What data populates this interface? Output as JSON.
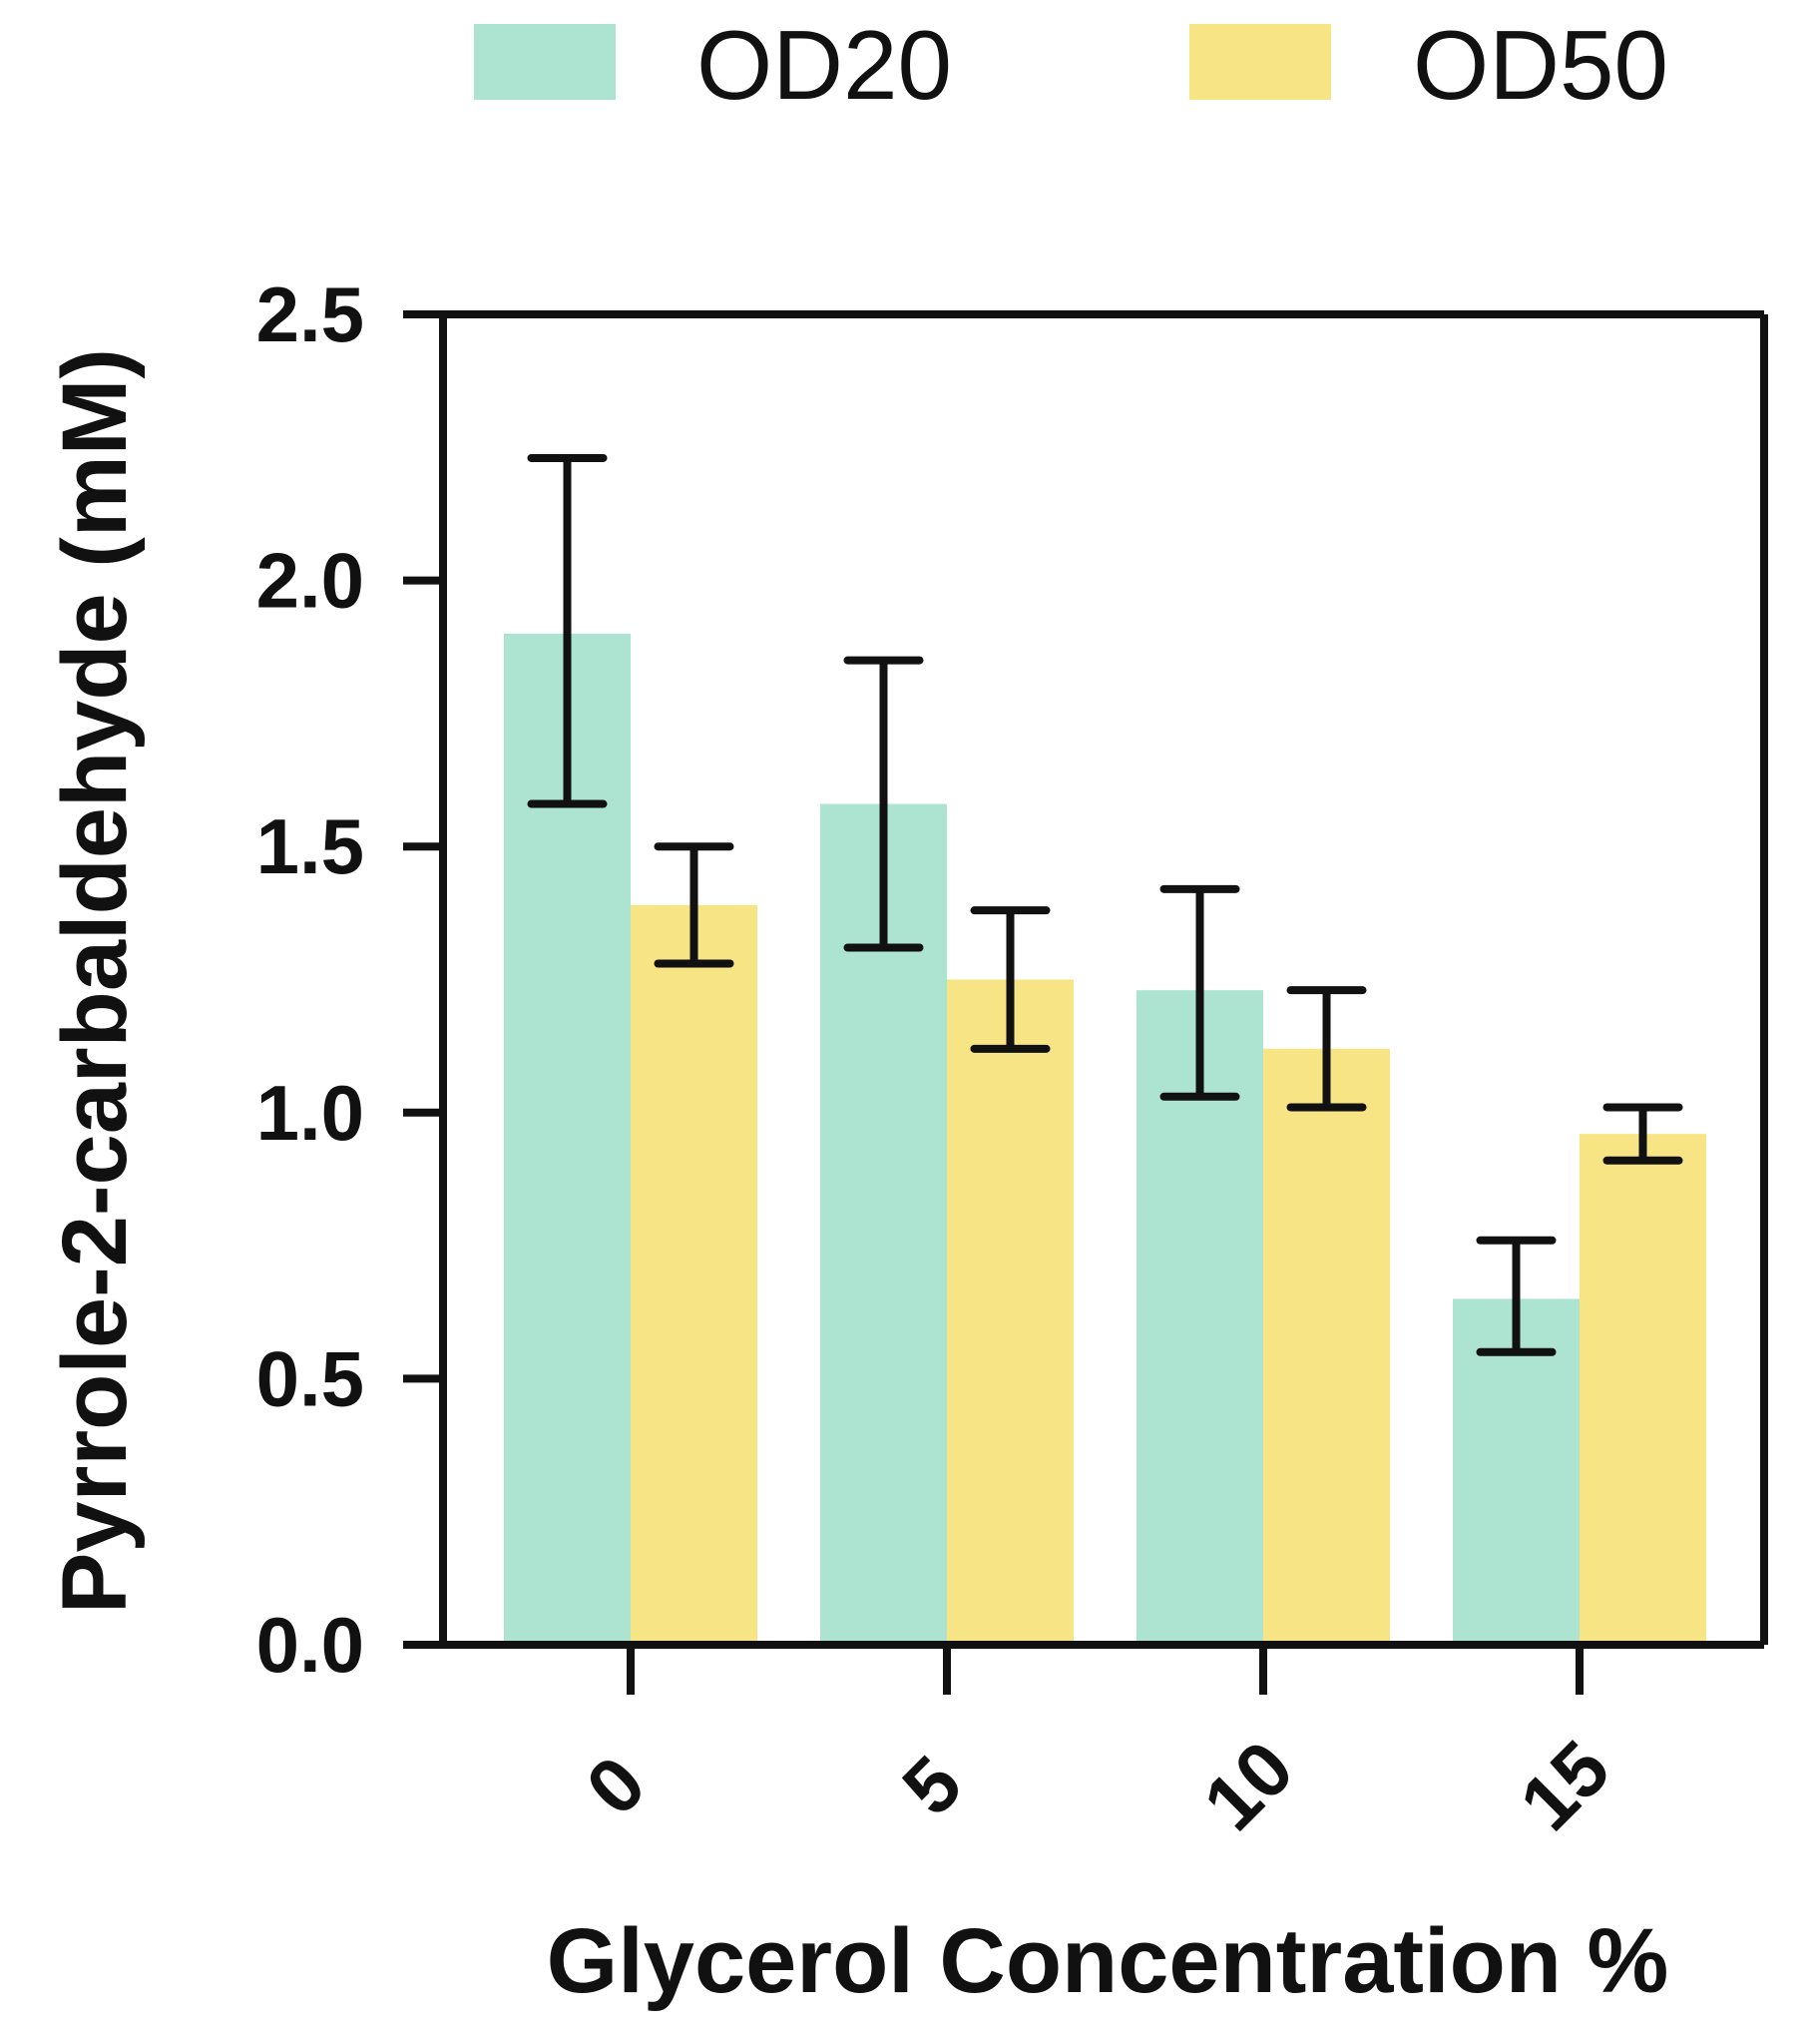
{
  "chart_data": {
    "type": "bar",
    "title": "",
    "xlabel": "Glycerol Concentration %",
    "ylabel": "Pyrrole-2-carbaldehyde (mM)",
    "categories": [
      "0",
      "5",
      "10",
      "15"
    ],
    "ylim": [
      0,
      2.5
    ],
    "yticks": [
      "0.0",
      "0.5",
      "1.0",
      "1.5",
      "2.0",
      "2.5"
    ],
    "grid": false,
    "legend_position": "top",
    "series": [
      {
        "name": "OD20",
        "color": "#ade3d1",
        "values": [
          1.9,
          1.58,
          1.23,
          0.65
        ],
        "error_low": [
          1.58,
          1.31,
          1.03,
          0.55
        ],
        "error_high": [
          2.23,
          1.85,
          1.42,
          0.76
        ]
      },
      {
        "name": "OD50",
        "color": "#f7e585",
        "values": [
          1.39,
          1.25,
          1.12,
          0.96
        ],
        "error_low": [
          1.28,
          1.12,
          1.01,
          0.91
        ],
        "error_high": [
          1.5,
          1.38,
          1.23,
          1.01
        ]
      }
    ]
  }
}
